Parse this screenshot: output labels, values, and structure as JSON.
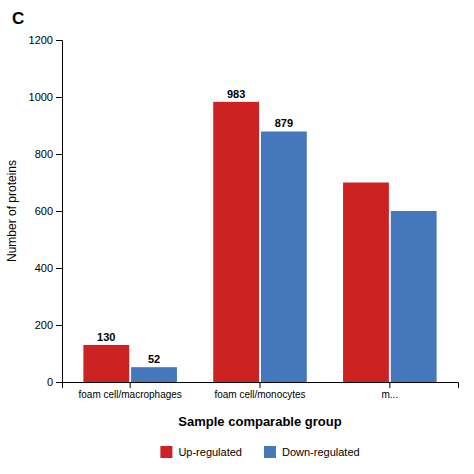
{
  "chart_data": {
    "type": "bar",
    "title": "C",
    "x_label": "Sample comparable group",
    "y_label": "Number of proteins",
    "categories": [
      "foam cell/macrophages",
      "foam cell/monocytes",
      "m..."
    ],
    "series": [
      {
        "name": "Up-regulated",
        "color": "#CC2222",
        "values": [
          130,
          983,
          700
        ],
        "value_labels": [
          "130",
          "983",
          null
        ]
      },
      {
        "name": "Down-regulated",
        "color": "#4477BB",
        "values": [
          52,
          879,
          600
        ],
        "value_labels": [
          "52",
          "879",
          null
        ]
      }
    ],
    "ylim": [
      0,
      1200
    ],
    "yticks": [
      0,
      200,
      400,
      600,
      800,
      1000,
      1200
    ],
    "data_labels": true,
    "legend": "bottom"
  }
}
